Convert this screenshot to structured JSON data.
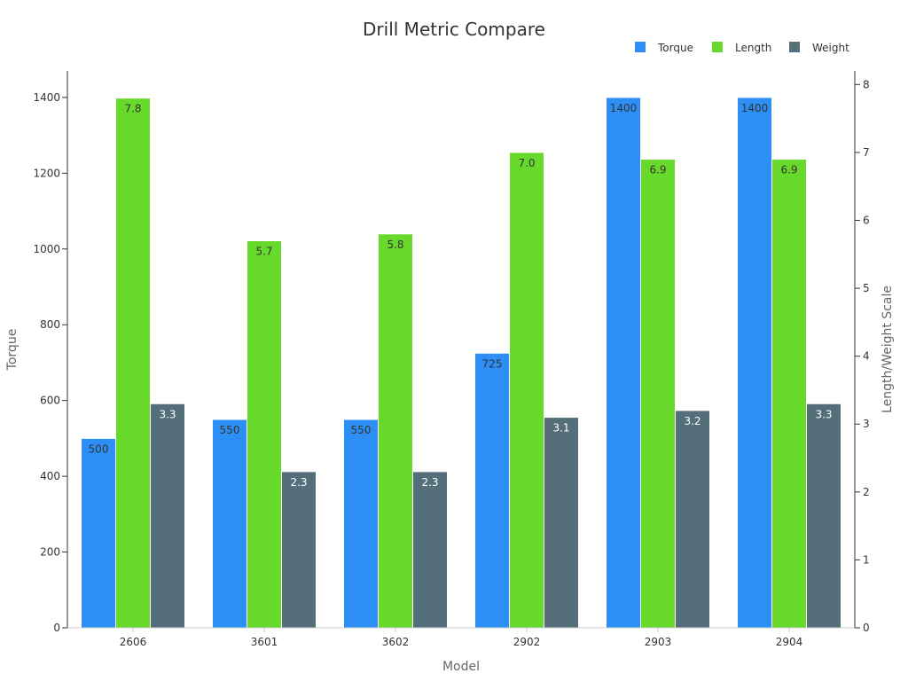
{
  "chart_data": {
    "type": "bar",
    "title": "Drill Metric Compare",
    "xlabel": "Model",
    "ylabel": "Torque",
    "y2label": "Length/Weight Scale",
    "categories": [
      "2606",
      "3601",
      "3602",
      "2902",
      "2903",
      "2904"
    ],
    "ylim": [
      0,
      1470
    ],
    "y2lim": [
      0,
      8.2
    ],
    "yticks": [
      0,
      200,
      400,
      600,
      800,
      1000,
      1200,
      1400
    ],
    "y2ticks": [
      0,
      1,
      2,
      3,
      4,
      5,
      6,
      7,
      8
    ],
    "legend_position": "top-right",
    "grid": false,
    "series": [
      {
        "name": "Torque",
        "axis": "left",
        "color": "#2d8ff5",
        "label_color": "#333333",
        "values": [
          500,
          550,
          550,
          725,
          1400,
          1400
        ],
        "labels": [
          "500",
          "550",
          "550",
          "725",
          "1400",
          "1400"
        ]
      },
      {
        "name": "Length",
        "axis": "right",
        "color": "#66d92b",
        "label_color": "#333333",
        "values": [
          7.8,
          5.7,
          5.8,
          7.0,
          6.9,
          6.9
        ],
        "labels": [
          "7.8",
          "5.7",
          "5.8",
          "7.0",
          "6.9",
          "6.9"
        ]
      },
      {
        "name": "Weight",
        "axis": "right",
        "color": "#546e7a",
        "label_color": "#ffffff",
        "values": [
          3.3,
          2.3,
          2.3,
          3.1,
          3.2,
          3.3
        ],
        "labels": [
          "3.3",
          "2.3",
          "2.3",
          "3.1",
          "3.2",
          "3.3"
        ]
      }
    ]
  }
}
